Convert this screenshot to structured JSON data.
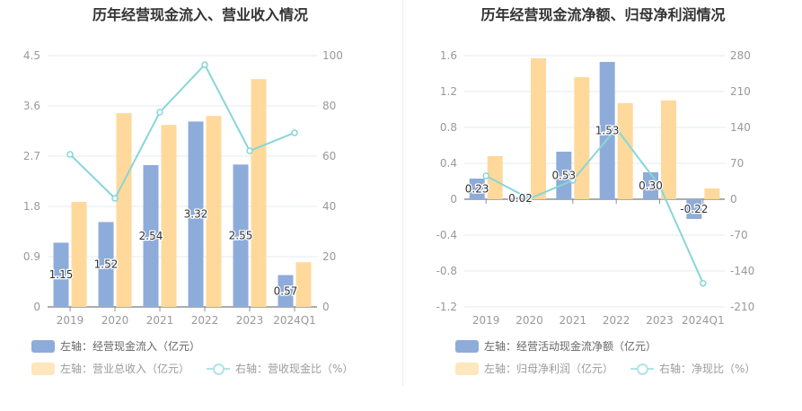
{
  "colors": {
    "bar1": "#8eacda",
    "bar2": "#fed99b",
    "line": "#88d6d8",
    "grid": "#e6e9f2",
    "axis_text": "#999999"
  },
  "chart_data": [
    {
      "type": "bar",
      "title": "历年经营现金流入、营业收入情况",
      "categories": [
        "2019",
        "2020",
        "2021",
        "2022",
        "2023",
        "2024Q1"
      ],
      "left_axis": {
        "min": 0,
        "max": 4.5,
        "ticks": [
          "0",
          "0.9",
          "1.8",
          "2.7",
          "3.6",
          "4.5"
        ]
      },
      "right_axis": {
        "min": 0,
        "max": 100,
        "ticks": [
          "0",
          "20",
          "40",
          "60",
          "80",
          "100"
        ]
      },
      "series": [
        {
          "name": "左轴：经营现金流入（亿元）",
          "kind": "bar",
          "axis": "left",
          "values": [
            1.15,
            1.52,
            2.54,
            3.32,
            2.55,
            0.57
          ],
          "labels": [
            "1.15",
            "1.52",
            "2.54",
            "3.32",
            "2.55",
            "0.57"
          ]
        },
        {
          "name": "左轴：营业总收入（亿元）",
          "kind": "bar",
          "axis": "left",
          "values": [
            1.88,
            3.47,
            3.26,
            3.42,
            4.08,
            0.8
          ]
        },
        {
          "name": "右轴：营收现金比（%）",
          "kind": "line",
          "axis": "right",
          "values": [
            60.7,
            43.2,
            77.5,
            96.4,
            62.1,
            69.3
          ]
        }
      ],
      "legend": "bottom"
    },
    {
      "type": "bar",
      "title": "历年经营现金流净额、归母净利润情况",
      "categories": [
        "2019",
        "2020",
        "2021",
        "2022",
        "2023",
        "2024Q1"
      ],
      "left_axis": {
        "min": -1.2,
        "max": 1.6,
        "ticks": [
          "-1.2",
          "-0.8",
          "-0.4",
          "0",
          "0.4",
          "0.8",
          "1.2",
          "1.6"
        ]
      },
      "right_axis": {
        "min": -210,
        "max": 280,
        "ticks": [
          "-210",
          "-140",
          "-70",
          "0",
          "70",
          "140",
          "210",
          "280"
        ]
      },
      "series": [
        {
          "name": "左轴：经营活动现金流净额（亿元）",
          "kind": "bar",
          "axis": "left",
          "values": [
            0.23,
            0.02,
            0.53,
            1.53,
            0.3,
            -0.22
          ],
          "labels": [
            "0.23",
            "0.02",
            "0.53",
            "1.53",
            "0.30",
            "-0.22"
          ]
        },
        {
          "name": "左轴：归母净利润（亿元）",
          "kind": "bar",
          "axis": "left",
          "values": [
            0.48,
            1.57,
            1.36,
            1.07,
            1.1,
            0.12
          ]
        },
        {
          "name": "右轴：净现比（%）",
          "kind": "line",
          "axis": "right",
          "values": [
            45.5,
            1,
            36.8,
            138,
            26,
            -164
          ]
        }
      ],
      "legend": "bottom"
    }
  ]
}
